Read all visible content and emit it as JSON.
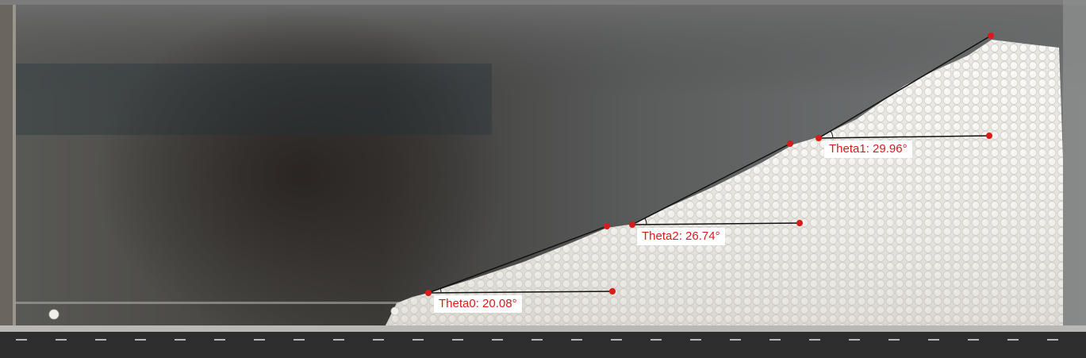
{
  "photo": {
    "subject": "tank-with-granular-bead-slope",
    "annotation_color": "#d81b1b",
    "line_color": "#111111"
  },
  "annotations": [
    {
      "id": "theta0",
      "label": "Theta0: 20.08°",
      "angle_deg": 20.08
    },
    {
      "id": "theta2",
      "label": "Theta2: 26.74°",
      "angle_deg": 26.74
    },
    {
      "id": "theta1",
      "label": "Theta1: 29.96°",
      "angle_deg": 29.96
    }
  ]
}
